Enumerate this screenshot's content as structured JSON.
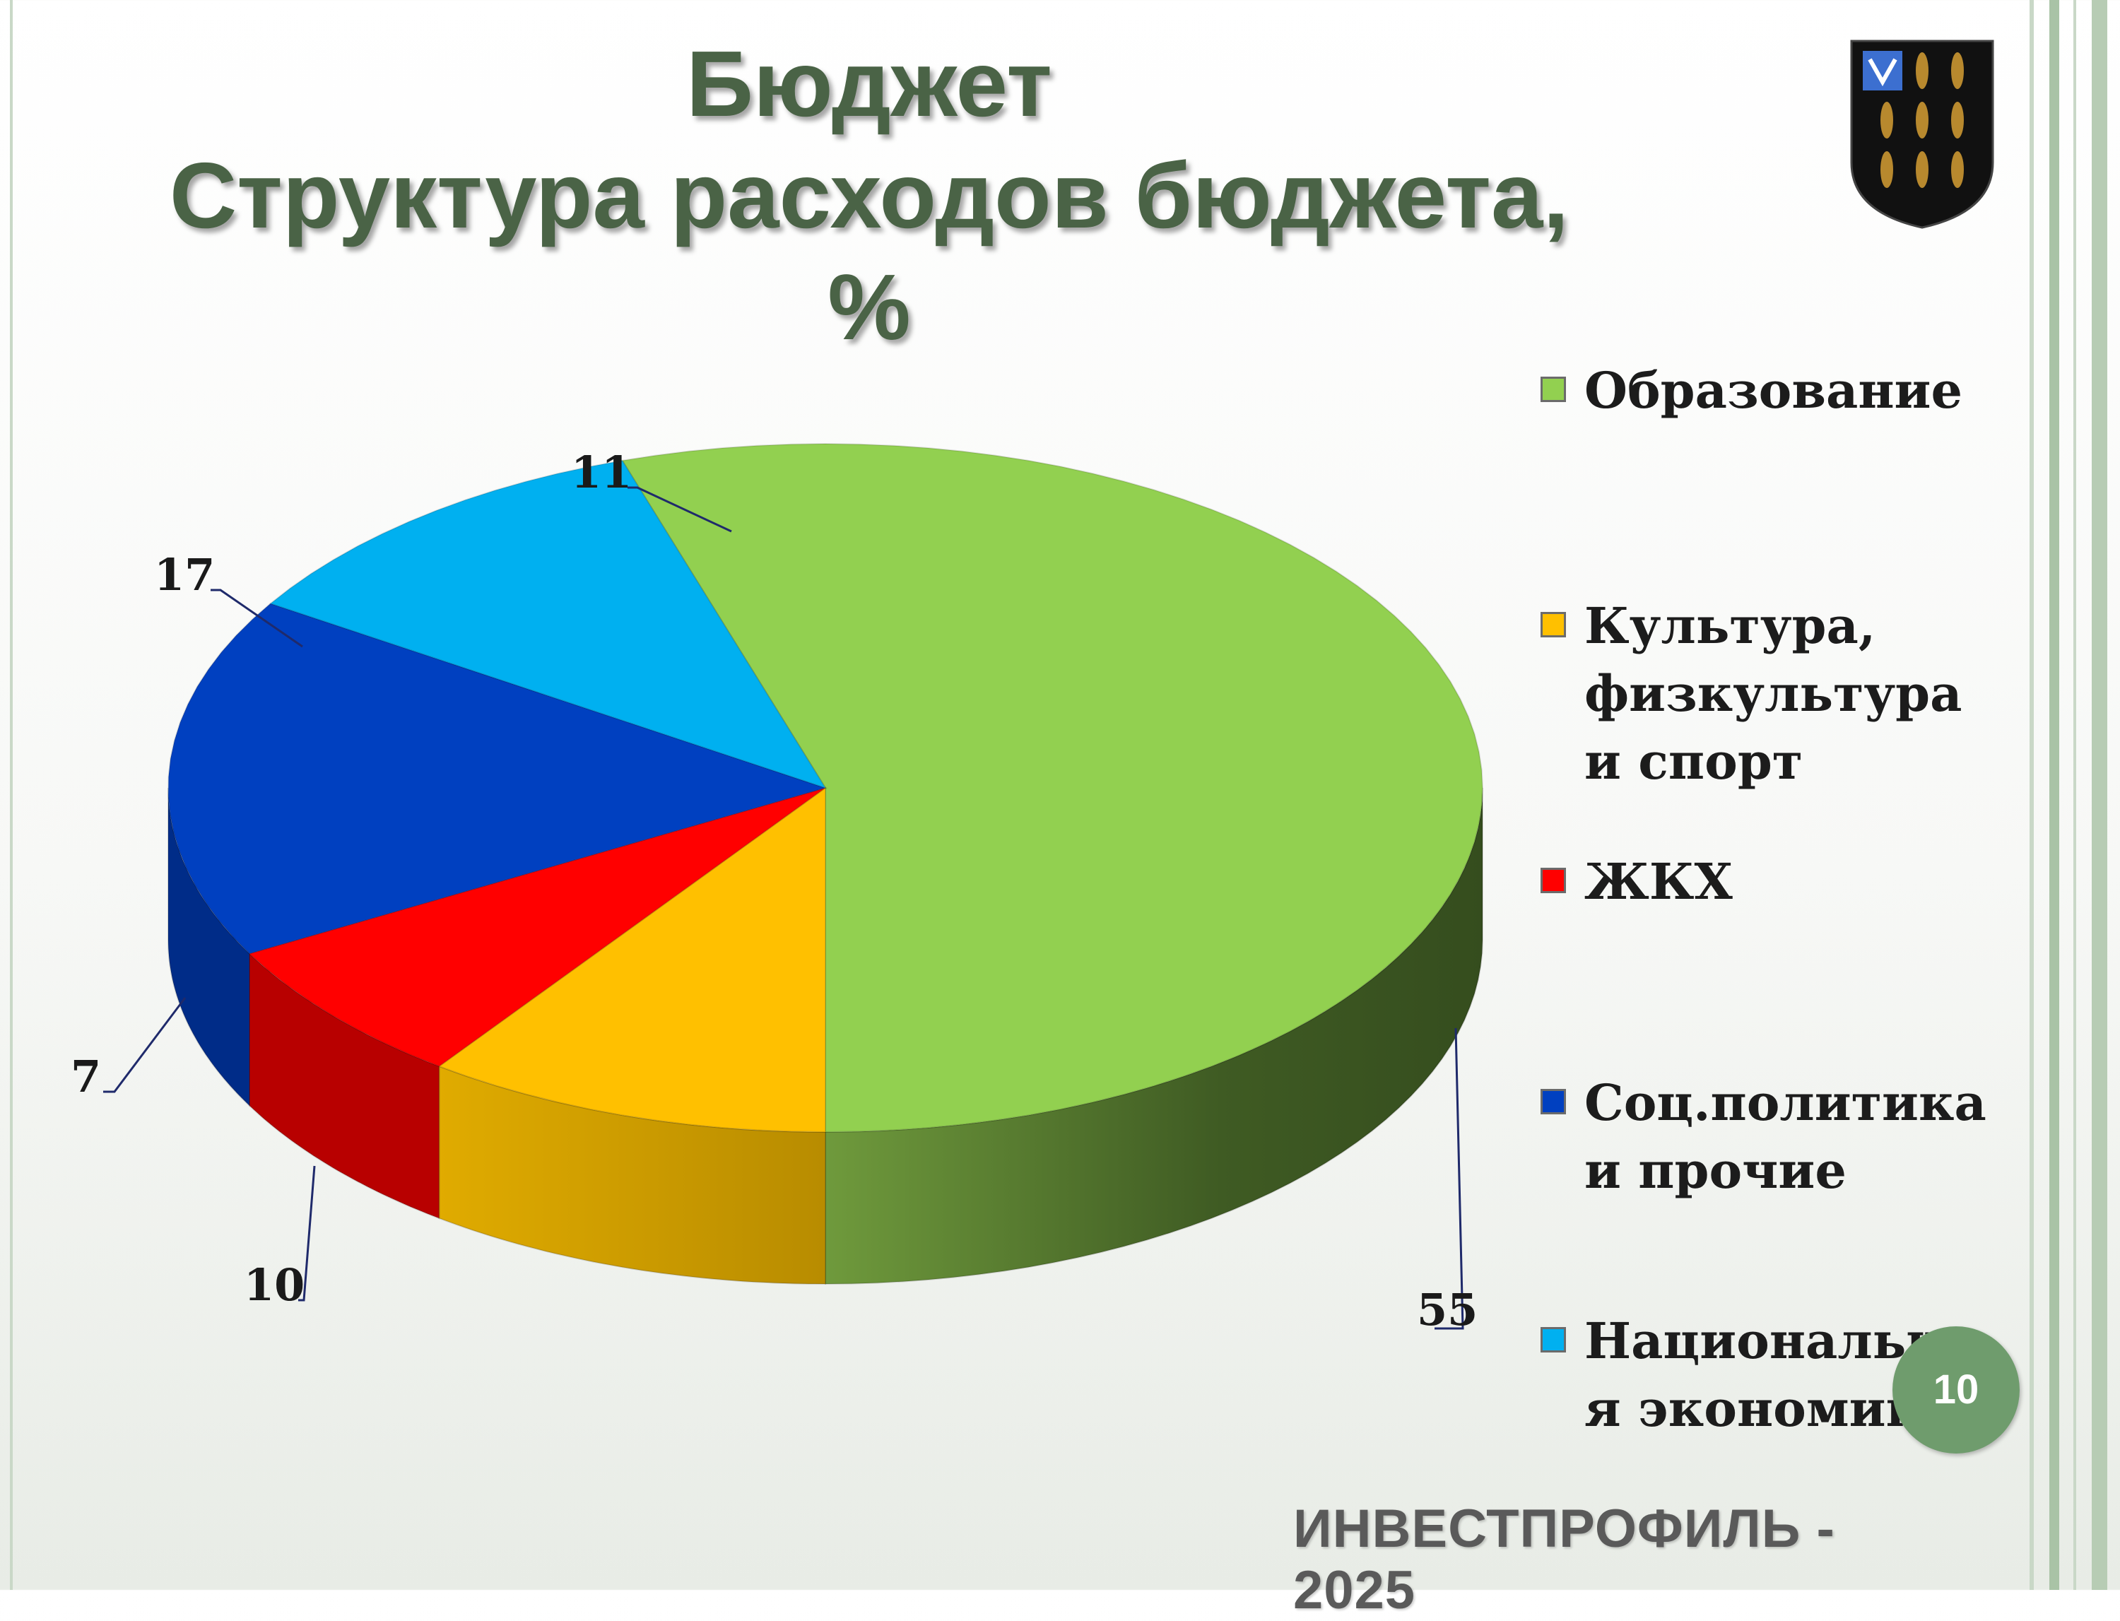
{
  "slide": {
    "title_line1": "Бюджет",
    "title_line2": "Структура расходов бюджета, %",
    "page_number": "10",
    "footer": "ИНВЕСТПРОФИЛЬ - 2025",
    "emblem_icon": "coat-of-arms-wheat"
  },
  "colors": {
    "title": "#4a6346",
    "page_badge": "#6f9c6d",
    "frame": "#9cb89a"
  },
  "chart_data": {
    "type": "pie",
    "title": "",
    "categories": [
      "Образование",
      "Культура, физкультура и спорт",
      "ЖКХ",
      "Соц.политика и прочие",
      "Национальная экономика"
    ],
    "values": [
      55,
      10,
      7,
      17,
      11
    ],
    "data_labels": [
      "55",
      "10",
      "7",
      "17",
      "11"
    ],
    "colors": [
      "#92d050",
      "#ffc000",
      "#ff0000",
      "#0040c0",
      "#00b0f0"
    ],
    "side_colors": [
      "#4f7a2c",
      "#c89a00",
      "#b80000",
      "#002c88",
      "#0080b0"
    ],
    "legend": {
      "placement": "right",
      "entries": [
        {
          "text": "Образование",
          "color": "#92d050"
        },
        {
          "text": "Культура,\nфизкультура\nи спорт",
          "color": "#ffc000"
        },
        {
          "text": "ЖКХ",
          "color": "#ff0000"
        },
        {
          "text": "Соц.политика\nи прочие",
          "color": "#0040c0"
        },
        {
          "text": "Национальна\nя экономика",
          "color": "#00b0f0"
        }
      ]
    }
  }
}
